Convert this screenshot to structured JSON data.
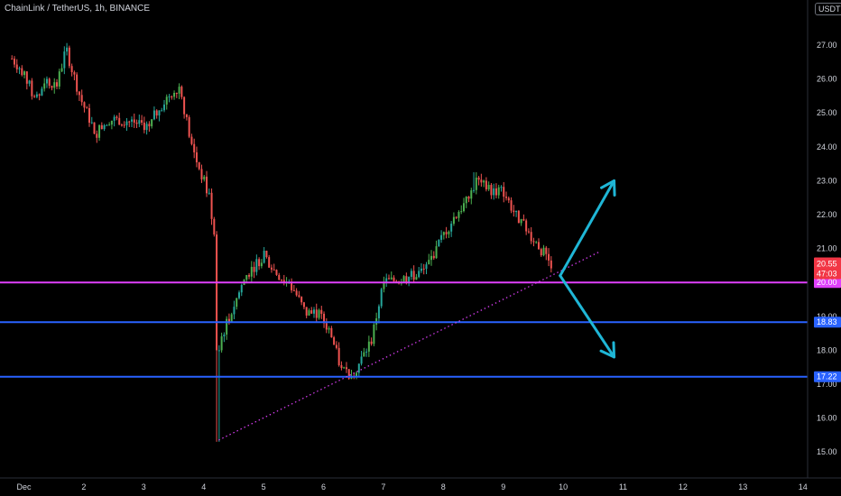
{
  "header": {
    "title": "ChainLink / TetherUS, 1h, BINANCE",
    "currency": "USDT"
  },
  "colors": {
    "up": "#26a69a",
    "up_bright": "#4caf50",
    "down": "#ef5350",
    "magenta": "#e040fb",
    "blue": "#2962ff",
    "arrow": "#1fb6d6",
    "price_tag": "#f23645"
  },
  "chart_data": {
    "type": "candlestick",
    "ylim": [
      14.6,
      27.7
    ],
    "y_ticks": [
      "15.00",
      "16.00",
      "17.00",
      "18.00",
      "19.00",
      "20.00",
      "21.00",
      "22.00",
      "23.00",
      "24.00",
      "25.00",
      "26.00",
      "27.00"
    ],
    "x_ticks": [
      "Dec",
      "2",
      "3",
      "4",
      "5",
      "6",
      "7",
      "8",
      "9",
      "10",
      "11",
      "12",
      "13",
      "14"
    ],
    "x_range_days": [
      0.8,
      14.2
    ],
    "price_path": [
      [
        0.8,
        26.6
      ],
      [
        1.0,
        26.2
      ],
      [
        1.2,
        25.3
      ],
      [
        1.35,
        26.0
      ],
      [
        1.55,
        25.8
      ],
      [
        1.7,
        26.9
      ],
      [
        1.95,
        25.4
      ],
      [
        2.2,
        24.4
      ],
      [
        2.4,
        24.8
      ],
      [
        2.7,
        24.8
      ],
      [
        3.1,
        24.6
      ],
      [
        3.2,
        25.0
      ],
      [
        3.45,
        25.6
      ],
      [
        3.6,
        25.8
      ],
      [
        3.8,
        24.0
      ],
      [
        4.1,
        22.5
      ],
      [
        4.2,
        21.0
      ],
      [
        4.22,
        15.3
      ],
      [
        4.3,
        18.4
      ],
      [
        4.5,
        19.3
      ],
      [
        4.7,
        20.2
      ],
      [
        5.0,
        20.8
      ],
      [
        5.2,
        20.3
      ],
      [
        5.5,
        19.8
      ],
      [
        5.7,
        19.1
      ],
      [
        5.9,
        19.1
      ],
      [
        6.1,
        18.6
      ],
      [
        6.3,
        17.4
      ],
      [
        6.5,
        17.3
      ],
      [
        6.8,
        18.3
      ],
      [
        7.0,
        20.0
      ],
      [
        7.3,
        20.1
      ],
      [
        7.5,
        20.2
      ],
      [
        7.7,
        20.4
      ],
      [
        8.0,
        21.4
      ],
      [
        8.2,
        22.0
      ],
      [
        8.4,
        22.4
      ],
      [
        8.55,
        23.0
      ],
      [
        8.8,
        22.7
      ],
      [
        9.0,
        22.7
      ],
      [
        9.2,
        22.0
      ],
      [
        9.5,
        21.3
      ],
      [
        9.8,
        20.55
      ]
    ],
    "levels": [
      {
        "name": "magenta-level",
        "value": 20.0,
        "label": "20.00",
        "color": "#e040fb"
      },
      {
        "name": "upper-blue-level",
        "value": 18.83,
        "label": "18.83",
        "color": "#2962ff"
      },
      {
        "name": "lower-blue-level",
        "value": 17.22,
        "label": "17.22",
        "color": "#2962ff"
      }
    ],
    "current_price": {
      "label": "20.55",
      "countdown": "47:03",
      "value": 20.55
    },
    "trendline": {
      "from": [
        4.25,
        15.35
      ],
      "to": [
        10.6,
        20.9
      ],
      "style": "dotted",
      "color": "#e040fb"
    },
    "projection_arrows": [
      {
        "from": [
          9.95,
          20.2
        ],
        "to": [
          10.85,
          23.0
        ],
        "direction": "up"
      },
      {
        "from": [
          9.95,
          20.2
        ],
        "to": [
          10.85,
          17.8
        ],
        "direction": "down"
      }
    ],
    "grid": false
  }
}
